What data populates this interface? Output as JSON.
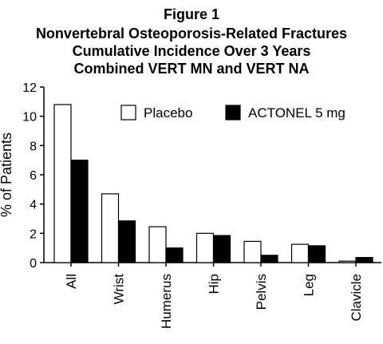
{
  "chart_data": {
    "type": "bar",
    "title": [
      "Figure 1",
      "Nonvertebral Osteoporosis-Related Fractures",
      "Cumulative Incidence Over 3 Years",
      "Combined VERT MN and VERT NA"
    ],
    "ylabel": "% of Patients",
    "xlabel": "",
    "ylim": [
      0,
      12
    ],
    "yticks": [
      "0",
      "2",
      "4",
      "6",
      "8",
      "10",
      "12"
    ],
    "categories": [
      "All",
      "Wrist",
      "Humerus",
      "Hip",
      "Pelvis",
      "Leg",
      "Clavicle"
    ],
    "series": [
      {
        "name": "Placebo",
        "color": "#ffffff",
        "values": [
          10.8,
          4.7,
          2.45,
          2.0,
          1.45,
          1.25,
          0.1
        ]
      },
      {
        "name": "ACTONEL 5 mg",
        "color": "#000000",
        "values": [
          7.0,
          2.85,
          1.0,
          1.85,
          0.5,
          1.15,
          0.35
        ]
      }
    ],
    "legend": {
      "placement": "top-right"
    },
    "grid": false
  }
}
